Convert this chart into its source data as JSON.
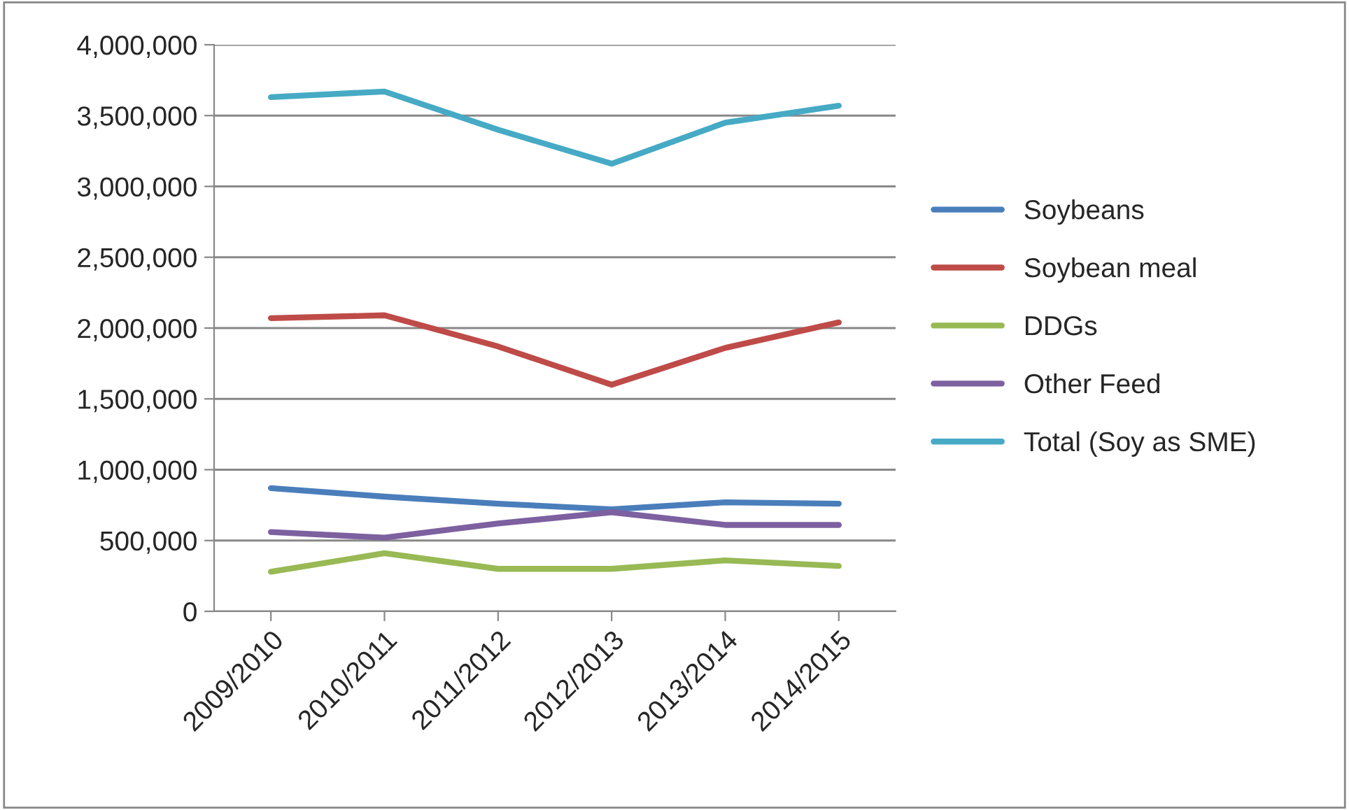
{
  "chart_data": {
    "type": "line",
    "categories": [
      "2009/2010",
      "2010/2011",
      "2011/2012",
      "2012/2013",
      "2013/2014",
      "2014/2015"
    ],
    "series": [
      {
        "name": "Soybeans",
        "color": "#4a7ebb",
        "values": [
          870000,
          810000,
          760000,
          720000,
          770000,
          760000
        ]
      },
      {
        "name": "Soybean meal",
        "color": "#be4b48",
        "values": [
          2070000,
          2090000,
          1870000,
          1600000,
          1860000,
          2040000
        ]
      },
      {
        "name": "DDGs",
        "color": "#98b954",
        "values": [
          280000,
          410000,
          300000,
          300000,
          360000,
          320000
        ]
      },
      {
        "name": "Other Feed",
        "color": "#7d60a0",
        "values": [
          560000,
          520000,
          620000,
          700000,
          610000,
          610000
        ]
      },
      {
        "name": "Total (Soy as SME)",
        "color": "#46aac5",
        "values": [
          3630000,
          3670000,
          3400000,
          3160000,
          3450000,
          3570000
        ]
      }
    ],
    "ylim": [
      0,
      4000000
    ],
    "yticks": [
      {
        "value": 0,
        "label": "0"
      },
      {
        "value": 500000,
        "label": "500,000"
      },
      {
        "value": 1000000,
        "label": "1,000,000"
      },
      {
        "value": 1500000,
        "label": "1,500,000"
      },
      {
        "value": 2000000,
        "label": "2,000,000"
      },
      {
        "value": 2500000,
        "label": "2,500,000"
      },
      {
        "value": 3000000,
        "label": "3,000,000"
      },
      {
        "value": 3500000,
        "label": "3,500,000"
      },
      {
        "value": 4000000,
        "label": "4,000,000"
      }
    ],
    "grid": "y",
    "legend": "right",
    "marker": "none",
    "line_style": "solid"
  }
}
